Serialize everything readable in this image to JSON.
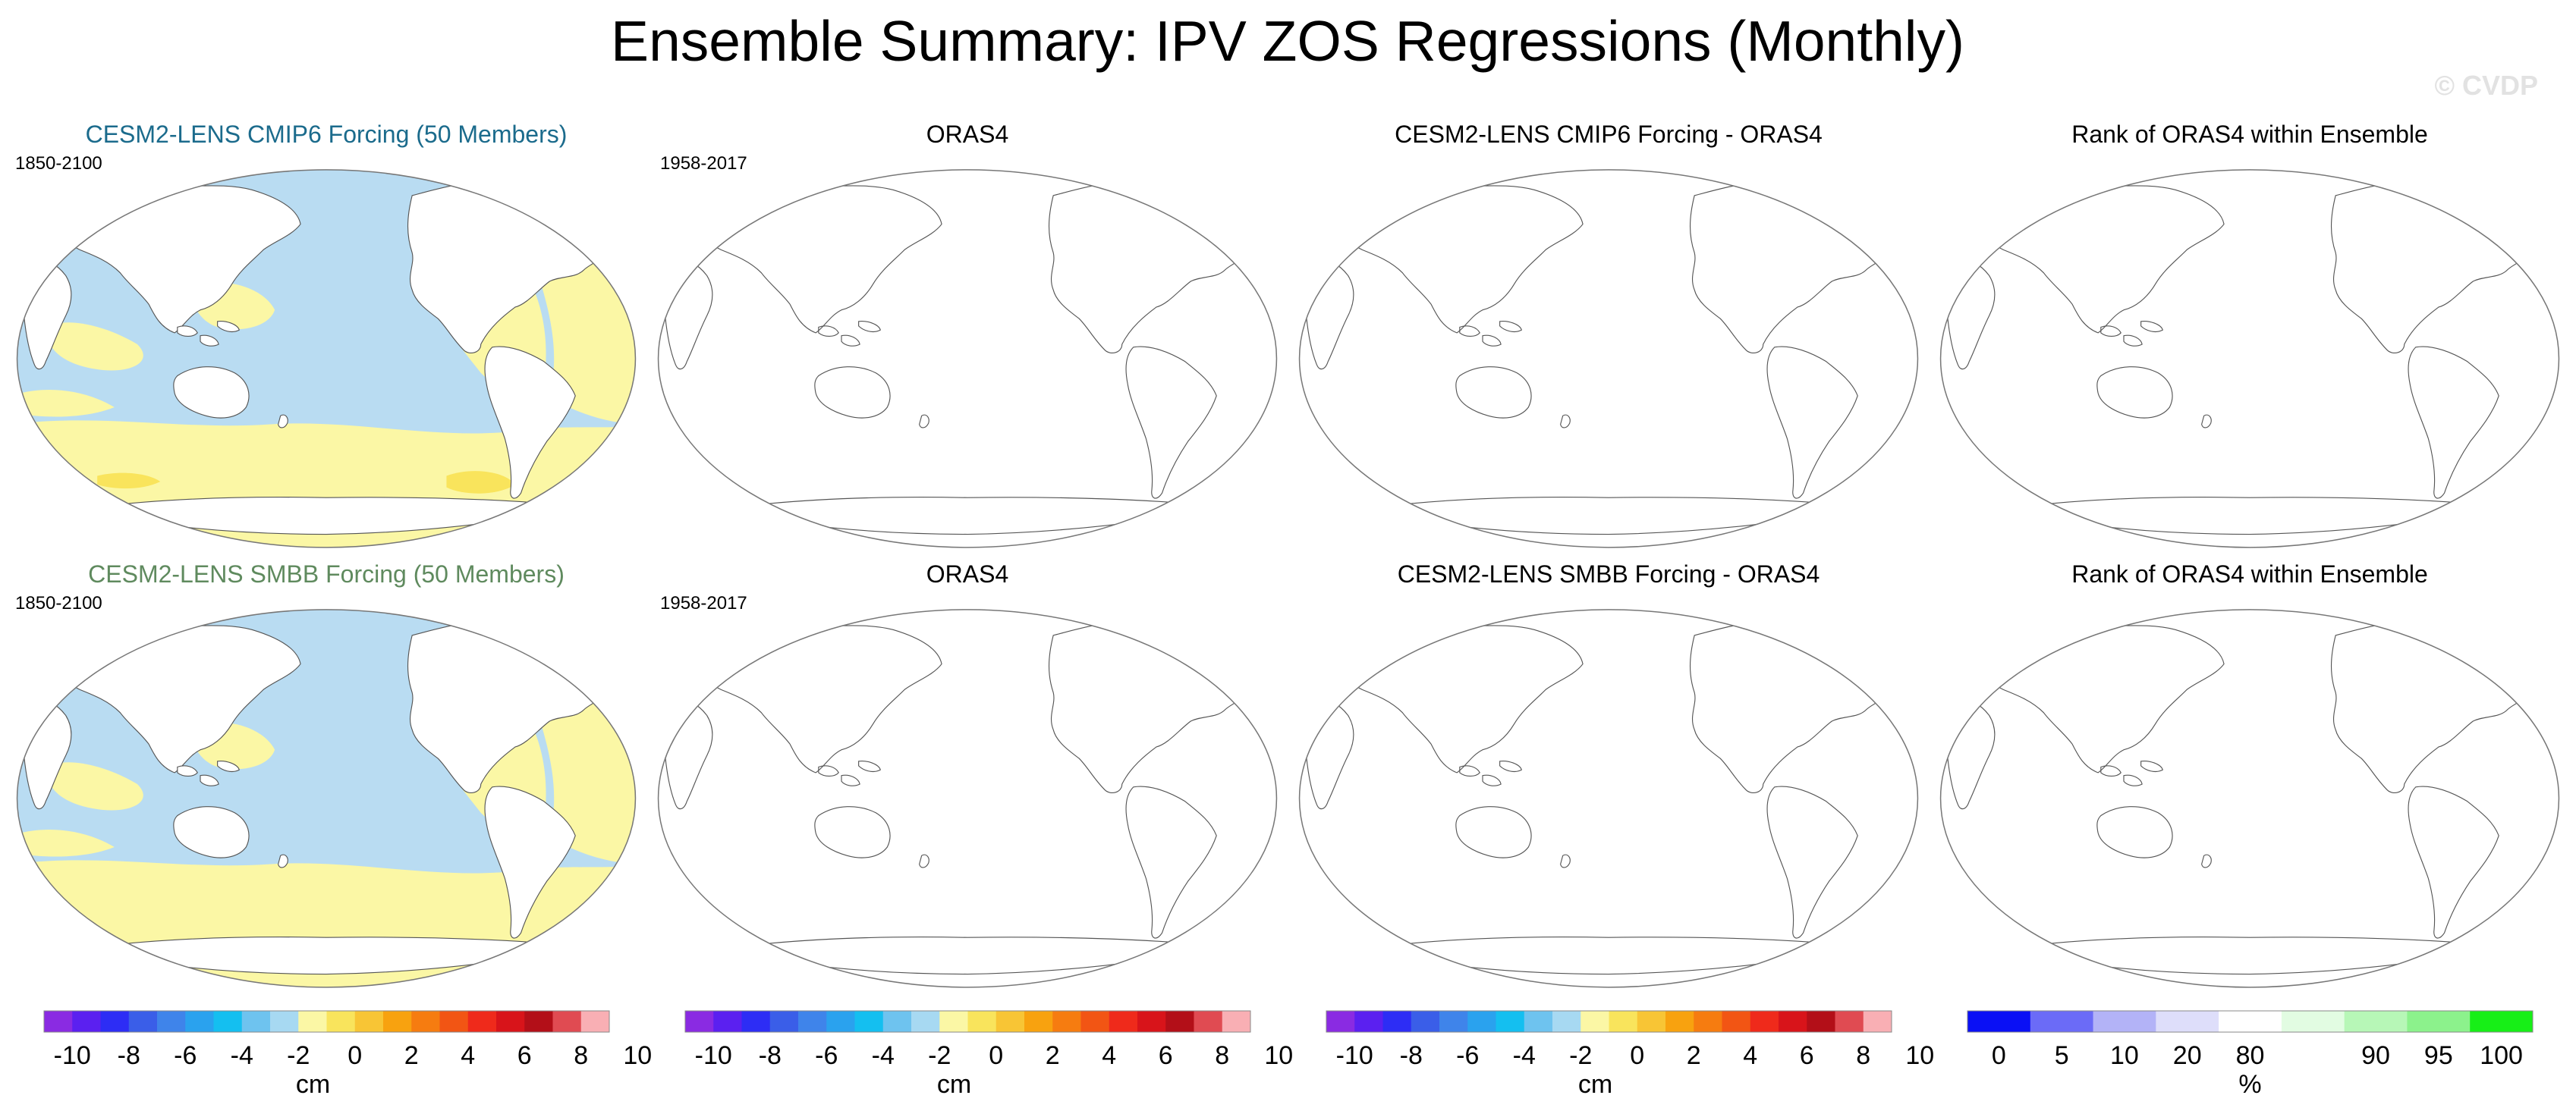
{
  "title": "Ensemble Summary: IPV ZOS Regressions (Monthly)",
  "watermark": "© CVDP",
  "colors": {
    "blue_region": "#b9dcf2",
    "yellow_region": "#fbf7a5",
    "dark_blue_region": "#91c6ea",
    "gold_region": "#f9e45c",
    "cmip6_title": "#1b6b8c",
    "smbb_title": "#5f8a5e",
    "coast": "#555555",
    "land": "#ffffff"
  },
  "rows": [
    {
      "panels": [
        {
          "title": "CESM2-LENS CMIP6 Forcing (50 Members)",
          "period": "1850-2100",
          "kind": "ensemble",
          "title_color": "#1b6b8c"
        },
        {
          "title": "ORAS4",
          "period": "1958-2017",
          "kind": "blank"
        },
        {
          "title": "CESM2-LENS CMIP6 Forcing - ORAS4",
          "period": "",
          "kind": "blank"
        },
        {
          "title": "Rank of ORAS4 within Ensemble",
          "period": "",
          "kind": "blank"
        }
      ]
    },
    {
      "panels": [
        {
          "title": "CESM2-LENS SMBB Forcing (50 Members)",
          "period": "1850-2100",
          "kind": "ensemble",
          "title_color": "#5f8a5e"
        },
        {
          "title": "ORAS4",
          "period": "1958-2017",
          "kind": "blank"
        },
        {
          "title": "CESM2-LENS SMBB Forcing - ORAS4",
          "period": "",
          "kind": "blank"
        },
        {
          "title": "Rank of ORAS4 within Ensemble",
          "period": "",
          "kind": "blank"
        }
      ]
    }
  ],
  "colorbars": [
    {
      "unit": "cm",
      "colors": [
        "#8a2be2",
        "#5b20f0",
        "#2d2df5",
        "#3a5ee8",
        "#3f84ea",
        "#2aa2ee",
        "#14bff0",
        "#6ec3ef",
        "#a7d9f2",
        "#fbf7a5",
        "#f9e45c",
        "#f8c535",
        "#f8a20f",
        "#f67c10",
        "#f25514",
        "#ef2a1b",
        "#d8141a",
        "#b30f18",
        "#e04b52",
        "#f9afb4"
      ],
      "labels": [
        "-10",
        "-8",
        "-6",
        "-4",
        "-2",
        "0",
        "2",
        "4",
        "6",
        "8",
        "10"
      ]
    },
    {
      "unit": "cm",
      "colors": [
        "#8a2be2",
        "#5b20f0",
        "#2d2df5",
        "#3a5ee8",
        "#3f84ea",
        "#2aa2ee",
        "#14bff0",
        "#6ec3ef",
        "#a7d9f2",
        "#fbf7a5",
        "#f9e45c",
        "#f8c535",
        "#f8a20f",
        "#f67c10",
        "#f25514",
        "#ef2a1b",
        "#d8141a",
        "#b30f18",
        "#e04b52",
        "#f9afb4"
      ],
      "labels": [
        "-10",
        "-8",
        "-6",
        "-4",
        "-2",
        "0",
        "2",
        "4",
        "6",
        "8",
        "10"
      ]
    },
    {
      "unit": "cm",
      "colors": [
        "#8a2be2",
        "#5b20f0",
        "#2d2df5",
        "#3a5ee8",
        "#3f84ea",
        "#2aa2ee",
        "#14bff0",
        "#6ec3ef",
        "#a7d9f2",
        "#fbf7a5",
        "#f9e45c",
        "#f8c535",
        "#f8a20f",
        "#f67c10",
        "#f25514",
        "#ef2a1b",
        "#d8141a",
        "#b30f18",
        "#e04b52",
        "#f9afb4"
      ],
      "labels": [
        "-10",
        "-8",
        "-6",
        "-4",
        "-2",
        "0",
        "2",
        "4",
        "6",
        "8",
        "10"
      ]
    },
    {
      "unit": "%",
      "colors": [
        "#0a10f5",
        "#6b6bf7",
        "#b3b3f7",
        "#dedefa",
        "#ffffff",
        "#e2fce2",
        "#b7f7b7",
        "#8cf28c",
        "#17ef17"
      ],
      "labels": [
        "0",
        "5",
        "10",
        "20",
        "80",
        "90",
        "95",
        "100"
      ]
    }
  ]
}
